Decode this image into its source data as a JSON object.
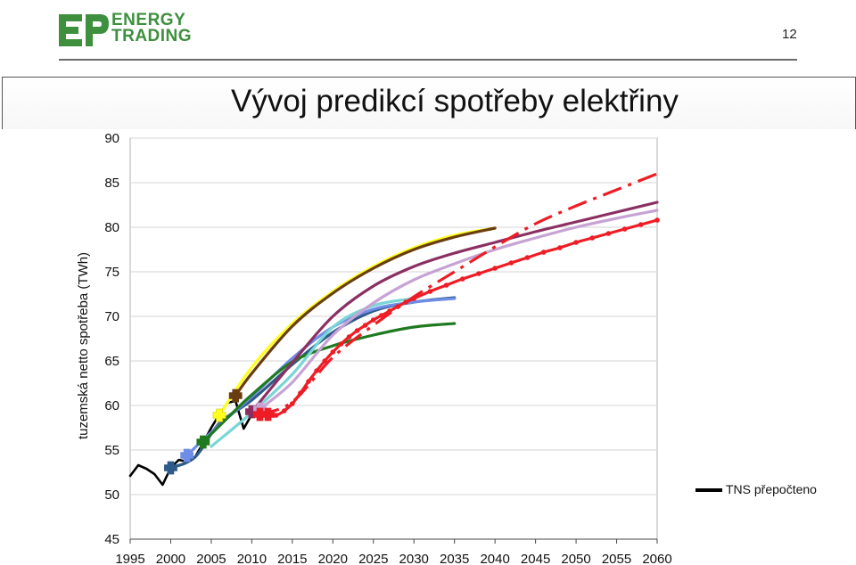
{
  "header": {
    "logo_line1": "ENERGY",
    "logo_line2": "TRADING",
    "page_number": "12"
  },
  "chart_data": {
    "type": "line",
    "title": "Vývoj predikcí spotřeby elektřiny",
    "ylabel": "tuzemská netto spotřeba (TWh)",
    "xlabel": "",
    "xlim": [
      1995,
      2060
    ],
    "ylim": [
      45,
      90
    ],
    "x_ticks": [
      1995,
      2000,
      2005,
      2010,
      2015,
      2020,
      2025,
      2030,
      2035,
      2040,
      2045,
      2050,
      2055,
      2060
    ],
    "y_ticks": [
      45,
      50,
      55,
      60,
      65,
      70,
      75,
      80,
      85,
      90
    ],
    "grid": "horizontal",
    "legend_position": "right",
    "legend_entries": [
      "TNS přepočteno"
    ],
    "series": [
      {
        "name": "TNS přepočteno",
        "color": "#000000",
        "points": [
          [
            1995,
            52.1
          ],
          [
            1996,
            53.3
          ],
          [
            1997,
            52.9
          ],
          [
            1998,
            52.3
          ],
          [
            1999,
            51.1
          ],
          [
            2000,
            53.0
          ],
          [
            2001,
            53.9
          ],
          [
            2002,
            53.7
          ],
          [
            2003,
            54.2
          ],
          [
            2004,
            55.8
          ],
          [
            2005,
            57.5
          ],
          [
            2006,
            59.0
          ],
          [
            2007,
            60.3
          ],
          [
            2008,
            60.5
          ],
          [
            2009,
            57.4
          ],
          [
            2010,
            59.0
          ]
        ]
      },
      {
        "color": "#2e5a8a",
        "marker_year": 2000,
        "marker_value": 53.0,
        "points": [
          [
            2000,
            53.0
          ],
          [
            2003,
            54.2
          ],
          [
            2006,
            58.0
          ],
          [
            2010,
            60.6
          ],
          [
            2015,
            64.6
          ],
          [
            2020,
            68.2
          ],
          [
            2025,
            70.6
          ],
          [
            2030,
            71.6
          ],
          [
            2035,
            72.1
          ]
        ]
      },
      {
        "color": "#6e8de6",
        "marker_year": 2002,
        "marker_value": 54.4,
        "points": [
          [
            2002,
            54.4
          ],
          [
            2005,
            57.0
          ],
          [
            2010,
            61.0
          ],
          [
            2015,
            65.3
          ],
          [
            2020,
            68.8
          ],
          [
            2025,
            70.8
          ],
          [
            2030,
            71.6
          ],
          [
            2035,
            72.0
          ]
        ]
      },
      {
        "color": "#1f7a1f",
        "marker_year": 2004,
        "marker_value": 55.9,
        "points": [
          [
            2004,
            55.9
          ],
          [
            2007,
            58.6
          ],
          [
            2010,
            61.2
          ],
          [
            2015,
            64.9
          ],
          [
            2020,
            66.7
          ],
          [
            2025,
            67.9
          ],
          [
            2030,
            68.8
          ],
          [
            2035,
            69.2
          ]
        ]
      },
      {
        "color": "#ffff22",
        "marker_year": 2006,
        "marker_value": 58.9,
        "points": [
          [
            2006,
            58.9
          ],
          [
            2010,
            64.3
          ],
          [
            2015,
            69.2
          ],
          [
            2020,
            72.8
          ],
          [
            2025,
            75.6
          ],
          [
            2030,
            77.7
          ],
          [
            2035,
            79.1
          ],
          [
            2040,
            79.9
          ]
        ]
      },
      {
        "color": "#6a3d10",
        "marker_year": 2008,
        "marker_value": 61.1,
        "points": [
          [
            2008,
            61.1
          ],
          [
            2010,
            63.6
          ],
          [
            2015,
            68.9
          ],
          [
            2020,
            72.6
          ],
          [
            2025,
            75.4
          ],
          [
            2030,
            77.5
          ],
          [
            2035,
            78.9
          ],
          [
            2040,
            79.9
          ]
        ]
      },
      {
        "color": "#7ad6d6",
        "points": [
          [
            2005,
            55.4
          ],
          [
            2010,
            59.2
          ],
          [
            2015,
            63.5
          ],
          [
            2020,
            68.8
          ],
          [
            2025,
            71.2
          ],
          [
            2030,
            72.0
          ]
        ]
      },
      {
        "color": "#8b2f62",
        "marker_year": 2010,
        "marker_value": 59.3,
        "points": [
          [
            2010,
            59.3
          ],
          [
            2015,
            64.8
          ],
          [
            2020,
            70.0
          ],
          [
            2025,
            73.4
          ],
          [
            2030,
            75.6
          ],
          [
            2035,
            77.1
          ],
          [
            2040,
            78.3
          ],
          [
            2045,
            79.5
          ],
          [
            2050,
            80.6
          ],
          [
            2055,
            81.7
          ],
          [
            2060,
            82.8
          ]
        ]
      },
      {
        "color": "#c7a3d4",
        "marker_year": 2011,
        "marker_value": 59.6,
        "points": [
          [
            2011,
            59.6
          ],
          [
            2015,
            62.6
          ],
          [
            2020,
            67.9
          ],
          [
            2025,
            71.5
          ],
          [
            2030,
            74.1
          ],
          [
            2035,
            75.9
          ],
          [
            2040,
            77.5
          ],
          [
            2045,
            78.8
          ],
          [
            2050,
            80.0
          ],
          [
            2055,
            81.0
          ],
          [
            2060,
            81.9
          ]
        ]
      },
      {
        "color": "#ee1c25",
        "style": "dash-dot",
        "marker_year": 2011,
        "marker_value": 59.0,
        "points": [
          [
            2011,
            59.0
          ],
          [
            2015,
            60.4
          ],
          [
            2020,
            65.4
          ],
          [
            2025,
            69.0
          ],
          [
            2030,
            72.2
          ],
          [
            2035,
            75.0
          ],
          [
            2040,
            77.8
          ],
          [
            2045,
            80.4
          ],
          [
            2050,
            82.4
          ],
          [
            2055,
            84.2
          ],
          [
            2060,
            86.0
          ]
        ]
      },
      {
        "color": "#ee1c25",
        "style": "dotted-markers",
        "marker_year": 2012,
        "marker_value": 59.0,
        "points": [
          [
            2012,
            59.0
          ],
          [
            2013,
            58.9
          ],
          [
            2014,
            59.4
          ],
          [
            2015,
            60.2
          ],
          [
            2016,
            61.4
          ],
          [
            2017,
            62.7
          ],
          [
            2018,
            63.9
          ],
          [
            2019,
            65.0
          ],
          [
            2020,
            66.0
          ],
          [
            2021,
            66.9
          ],
          [
            2022,
            67.7
          ],
          [
            2023,
            68.4
          ],
          [
            2024,
            69.0
          ],
          [
            2025,
            69.6
          ],
          [
            2026,
            70.1
          ],
          [
            2027,
            70.6
          ],
          [
            2028,
            71.1
          ],
          [
            2029,
            71.6
          ],
          [
            2030,
            72.0
          ],
          [
            2032,
            72.8
          ],
          [
            2034,
            73.5
          ],
          [
            2036,
            74.2
          ],
          [
            2038,
            74.8
          ],
          [
            2040,
            75.4
          ],
          [
            2042,
            76.0
          ],
          [
            2044,
            76.6
          ],
          [
            2046,
            77.2
          ],
          [
            2048,
            77.7
          ],
          [
            2050,
            78.3
          ],
          [
            2052,
            78.8
          ],
          [
            2054,
            79.3
          ],
          [
            2056,
            79.8
          ],
          [
            2058,
            80.3
          ],
          [
            2060,
            80.8
          ]
        ]
      }
    ]
  }
}
